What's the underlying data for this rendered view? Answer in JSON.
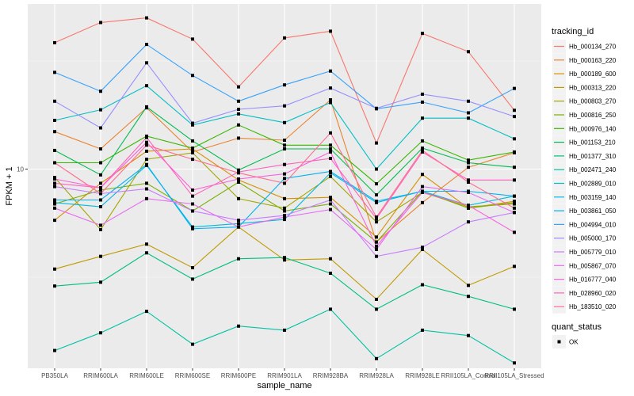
{
  "chart_data": {
    "type": "line",
    "title": "",
    "xlabel": "sample_name",
    "ylabel": "FPKM + 1",
    "y_scale": "log10",
    "y_ticks": [
      10
    ],
    "y_tick_labels": [
      "10"
    ],
    "ylim": [
      1.2,
      58
    ],
    "grid": true,
    "legend_position": "right",
    "categories": [
      "PB350LA",
      "RRIM600LA",
      "RRIM600LE",
      "RRIM600SE",
      "RRIM600PE",
      "RRIM901LA",
      "RRIM928BA",
      "RRIM928LA",
      "RRIM928LE",
      "RRII105LA_Control",
      "RRII105LA_Stressed"
    ],
    "legend_title": "tracking_id",
    "shape_legend_title": "quant_status",
    "shape_legend_items": [
      "OK"
    ],
    "series": [
      {
        "name": "Hb_000134_270",
        "color": "#F8766D",
        "values": [
          38.4,
          47.6,
          50.0,
          39.9,
          24.0,
          40.4,
          43.4,
          13.2,
          42.4,
          34.9,
          18.7
        ]
      },
      {
        "name": "Hb_000163_220",
        "color": "#EA8331",
        "values": [
          14.9,
          12.4,
          19.2,
          12.0,
          13.9,
          13.6,
          20.9,
          4.6,
          7.0,
          10.2,
          11.9
        ]
      },
      {
        "name": "Hb_000189_600",
        "color": "#D89000",
        "values": [
          5.8,
          8.6,
          12.1,
          12.4,
          8.9,
          7.3,
          7.4,
          4.85,
          9.45,
          6.6,
          7.1
        ]
      },
      {
        "name": "Hb_000313_220",
        "color": "#C09B00",
        "values": [
          3.45,
          3.95,
          4.5,
          3.5,
          5.4,
          3.8,
          3.85,
          2.5,
          4.25,
          2.9,
          3.55
        ]
      },
      {
        "name": "Hb_000803_270",
        "color": "#A3A500",
        "values": [
          9.15,
          5.25,
          11.1,
          11.9,
          7.3,
          6.6,
          9.25,
          5.7,
          7.8,
          6.7,
          6.9
        ]
      },
      {
        "name": "Hb_000816_250",
        "color": "#7CAE00",
        "values": [
          6.9,
          8.0,
          8.6,
          6.4,
          8.7,
          6.4,
          6.9,
          4.6,
          7.9,
          6.6,
          7.0
        ]
      },
      {
        "name": "Hb_000976_140",
        "color": "#39B600",
        "values": [
          10.7,
          10.7,
          14.2,
          12.5,
          16.0,
          12.9,
          12.9,
          8.55,
          13.5,
          11.0,
          12.0
        ]
      },
      {
        "name": "Hb_001153_210",
        "color": "#00BB4E",
        "values": [
          12.2,
          9.4,
          19.4,
          13.5,
          9.9,
          12.4,
          12.4,
          7.6,
          12.5,
          10.7,
          10.2
        ]
      },
      {
        "name": "Hb_001377_310",
        "color": "#00BF7D",
        "values": [
          2.88,
          3.0,
          4.1,
          3.1,
          3.85,
          3.9,
          3.3,
          2.25,
          2.92,
          2.58,
          2.25
        ]
      },
      {
        "name": "Hb_002471_240",
        "color": "#00C1A3",
        "values": [
          1.45,
          1.75,
          2.2,
          1.55,
          1.88,
          1.8,
          2.25,
          1.33,
          1.8,
          1.7,
          1.27
        ]
      },
      {
        "name": "Hb_002889_010",
        "color": "#00BFC4",
        "values": [
          16.8,
          18.8,
          24.3,
          16.0,
          18.0,
          16.4,
          20.3,
          10.0,
          17.2,
          17.2,
          13.8
        ]
      },
      {
        "name": "Hb_003159_140",
        "color": "#00BAE0",
        "values": [
          7.0,
          6.7,
          10.4,
          5.4,
          5.6,
          5.85,
          9.6,
          7.0,
          7.9,
          6.8,
          7.5
        ]
      },
      {
        "name": "Hb_003861_050",
        "color": "#00B0F6",
        "values": [
          7.2,
          7.2,
          10.5,
          5.3,
          5.4,
          9.05,
          9.75,
          7.1,
          7.9,
          7.9,
          7.5
        ]
      },
      {
        "name": "Hb_004994_010",
        "color": "#35A2FF",
        "values": [
          28.0,
          22.9,
          37.7,
          27.1,
          20.6,
          24.5,
          28.4,
          19.0,
          20.4,
          18.2,
          23.6
        ]
      },
      {
        "name": "Hb_005000_170",
        "color": "#9590FF",
        "values": [
          20.6,
          15.5,
          31.0,
          16.3,
          18.9,
          19.6,
          23.7,
          19.1,
          22.2,
          20.6,
          17.5
        ]
      },
      {
        "name": "Hb_005779_010",
        "color": "#C77CFF",
        "values": [
          8.3,
          7.7,
          8.1,
          6.4,
          5.8,
          6.1,
          7.2,
          3.95,
          4.35,
          5.7,
          6.3
        ]
      },
      {
        "name": "Hb_005867_070",
        "color": "#E76BF3",
        "values": [
          6.6,
          5.5,
          7.3,
          6.9,
          5.4,
          6.0,
          6.5,
          4.25,
          8.3,
          7.8,
          6.3
        ]
      },
      {
        "name": "Hb_016777_040",
        "color": "#FA62DB",
        "values": [
          9.0,
          8.2,
          13.3,
          8.0,
          9.0,
          9.5,
          12.0,
          4.4,
          7.8,
          6.8,
          5.1
        ]
      },
      {
        "name": "Hb_028960_020",
        "color": "#FF62BC",
        "values": [
          8.6,
          8.2,
          14.0,
          7.5,
          9.7,
          10.5,
          11.2,
          5.9,
          12.0,
          8.9,
          8.9
        ]
      },
      {
        "name": "Hb_183510_020",
        "color": "#FF6C91",
        "values": [
          10.7,
          7.7,
          12.9,
          11.1,
          9.6,
          8.6,
          14.7,
          6.0,
          12.2,
          8.7,
          6.6
        ]
      }
    ]
  }
}
